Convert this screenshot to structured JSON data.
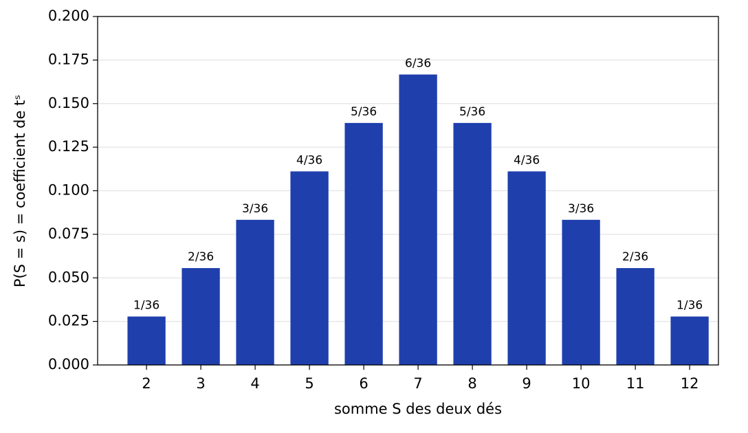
{
  "chart_data": {
    "type": "bar",
    "x": [
      2,
      3,
      4,
      5,
      6,
      7,
      8,
      9,
      10,
      11,
      12
    ],
    "values": [
      0.0278,
      0.0556,
      0.0833,
      0.1111,
      0.1389,
      0.1667,
      0.1389,
      0.1111,
      0.0833,
      0.0556,
      0.0278
    ],
    "value_labels": [
      "1/36",
      "2/36",
      "3/36",
      "4/36",
      "5/36",
      "6/36",
      "5/36",
      "4/36",
      "3/36",
      "2/36",
      "1/36"
    ],
    "color": "#1f3fad",
    "xlabel": "somme S des deux dés",
    "ylabel": "P(S = s) = coefficient de tˢ",
    "xlim": [
      1.1,
      12.53
    ],
    "xticks": [
      2,
      3,
      4,
      5,
      6,
      7,
      8,
      9,
      10,
      11,
      12
    ],
    "ylim": [
      0,
      0.2
    ],
    "yticks": [
      {
        "value": 0,
        "label": "0.000"
      },
      {
        "value": 0.025,
        "label": "0.025"
      },
      {
        "value": 0.05,
        "label": "0.050"
      },
      {
        "value": 0.075,
        "label": "0.075"
      },
      {
        "value": 0.1,
        "label": "0.100"
      },
      {
        "value": 0.125,
        "label": "0.125"
      },
      {
        "value": 0.15,
        "label": "0.150"
      },
      {
        "value": 0.175,
        "label": "0.175"
      },
      {
        "value": 0.2,
        "label": "0.200"
      }
    ],
    "grid": true
  }
}
